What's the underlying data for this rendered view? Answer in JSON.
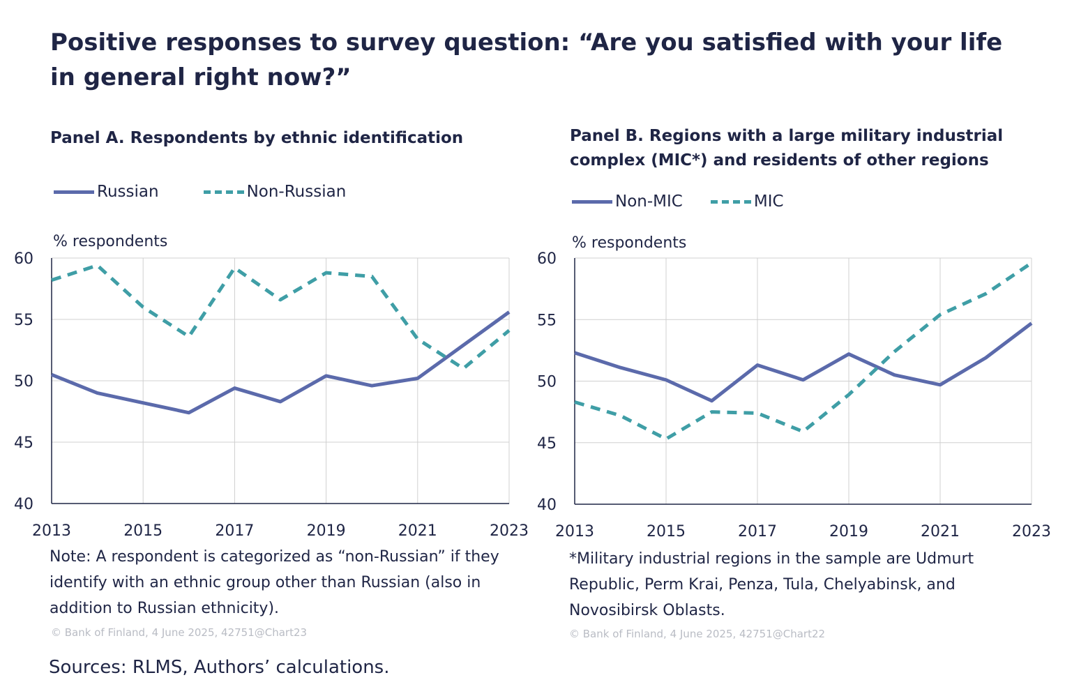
{
  "title": "Positive responses to survey question: “Are you satisfied with your life in general right now?”",
  "sources": "Sources: RLMS, Authors’ calculations.",
  "colors": {
    "solid": "#5b6aab",
    "dashed": "#3f9ea6",
    "grid": "#d0d0d0",
    "axis": "#1f2545"
  },
  "panels": [
    {
      "title": "Panel A. Respondents by ethnic identification",
      "ylabel": "% respondents",
      "note": "Note: A respondent is categorized as “non-Russian” if they identify with an ethnic group other than Russian (also in addition to Russian ethnicity).",
      "copyright": "© Bank of Finland, 4 June 2025, 42751@Chart23",
      "legend": [
        "Russian",
        "Non-Russian"
      ]
    },
    {
      "title": "Panel B. Regions with a large military industrial complex (MIC*) and residents of other regions",
      "ylabel": "% respondents",
      "note": "*Military industrial regions in the sample are Udmurt Republic, Perm Krai, Penza, Tula, Chelyabinsk, and Novosibirsk Oblasts.",
      "copyright": "© Bank of Finland, 4 June 2025, 42751@Chart22",
      "legend": [
        "Non-MIC",
        "MIC"
      ]
    }
  ],
  "chart_data": [
    {
      "type": "line",
      "title": "Panel A. Respondents by ethnic identification",
      "ylabel": "% respondents",
      "x": [
        2013,
        2014,
        2015,
        2016,
        2017,
        2018,
        2019,
        2020,
        2021,
        2022,
        2023
      ],
      "xticks": [
        "2013",
        "2015",
        "2017",
        "2019",
        "2021",
        "2023"
      ],
      "yticks": [
        "40",
        "45",
        "50",
        "55",
        "60"
      ],
      "ylim": [
        40,
        60
      ],
      "series": [
        {
          "name": "Russian",
          "style": "solid",
          "values": [
            50.5,
            49.0,
            48.2,
            47.4,
            49.4,
            48.3,
            50.4,
            49.6,
            50.2,
            52.9,
            55.6
          ]
        },
        {
          "name": "Non-Russian",
          "style": "dashed",
          "values": [
            58.2,
            59.4,
            56.0,
            53.6,
            59.2,
            56.6,
            58.8,
            58.5,
            53.4,
            51.0,
            54.1
          ]
        }
      ]
    },
    {
      "type": "line",
      "title": "Panel B. Regions with a large military industrial complex (MIC*) and residents of other regions",
      "ylabel": "% respondents",
      "x": [
        2013,
        2014,
        2015,
        2016,
        2017,
        2018,
        2019,
        2020,
        2021,
        2022,
        2023
      ],
      "xticks": [
        "2013",
        "2015",
        "2017",
        "2019",
        "2021",
        "2023"
      ],
      "yticks": [
        "40",
        "45",
        "50",
        "55",
        "60"
      ],
      "ylim": [
        40,
        60
      ],
      "series": [
        {
          "name": "Non-MIC",
          "style": "solid",
          "values": [
            52.3,
            51.1,
            50.1,
            48.4,
            51.3,
            50.1,
            52.2,
            50.5,
            49.7,
            51.9,
            54.7
          ]
        },
        {
          "name": "MIC",
          "style": "dashed",
          "values": [
            48.3,
            47.2,
            45.3,
            47.5,
            47.4,
            45.9,
            48.9,
            52.4,
            55.4,
            57.1,
            59.6
          ]
        }
      ]
    }
  ]
}
